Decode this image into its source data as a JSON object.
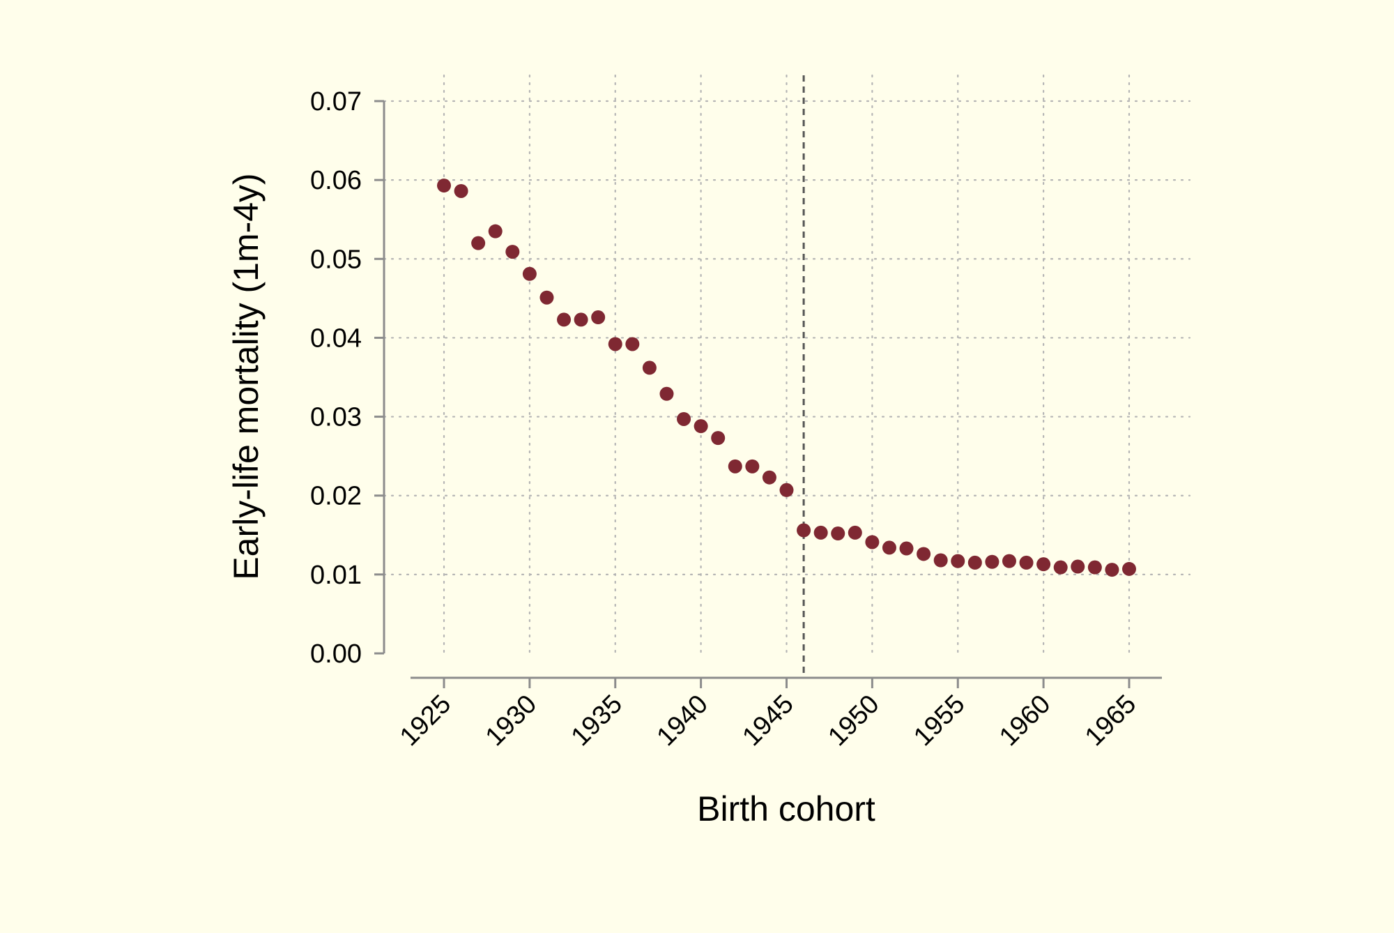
{
  "chart_data": {
    "type": "scatter",
    "title": "",
    "xlabel": "Birth cohort",
    "ylabel": "Early-life mortality (1m-4y)",
    "xlim": [
      1921.9,
      1966.9
    ],
    "ylim": [
      0,
      0.07
    ],
    "x_ticks": [
      "1925",
      "1930",
      "1935",
      "1940",
      "1945",
      "1950",
      "1955",
      "1960",
      "1965"
    ],
    "y_ticks": [
      "0.00",
      "0.01",
      "0.02",
      "0.03",
      "0.04",
      "0.05",
      "0.06",
      "0.07"
    ],
    "grid": "dotted-both",
    "reference_line": {
      "x": 1946,
      "style": "dashed"
    },
    "marker_color": "#7f2832",
    "x": [
      1925,
      1926,
      1927,
      1928,
      1929,
      1930,
      1931,
      1932,
      1933,
      1934,
      1935,
      1936,
      1937,
      1938,
      1939,
      1940,
      1941,
      1942,
      1943,
      1944,
      1945,
      1946,
      1947,
      1948,
      1949,
      1950,
      1951,
      1952,
      1953,
      1954,
      1955,
      1956,
      1957,
      1958,
      1959,
      1960,
      1961,
      1962,
      1963,
      1964,
      1965
    ],
    "y": [
      0.0593,
      0.0586,
      0.052,
      0.0535,
      0.0509,
      0.0481,
      0.0451,
      0.0423,
      0.0423,
      0.0426,
      0.0392,
      0.0392,
      0.0362,
      0.0329,
      0.0297,
      0.0288,
      0.0273,
      0.0237,
      0.0237,
      0.0223,
      0.0207,
      0.0156,
      0.0153,
      0.0152,
      0.0153,
      0.0141,
      0.0134,
      0.0133,
      0.0126,
      0.0118,
      0.0117,
      0.0115,
      0.0116,
      0.0117,
      0.0115,
      0.0113,
      0.0109,
      0.011,
      0.0109,
      0.0106,
      0.0107
    ]
  },
  "colors": {
    "background": "#fffeeb",
    "axis": "#8c8c8c",
    "grid": "#b4b4b4",
    "reference_line": "#555555",
    "marker": "#7f2832"
  }
}
